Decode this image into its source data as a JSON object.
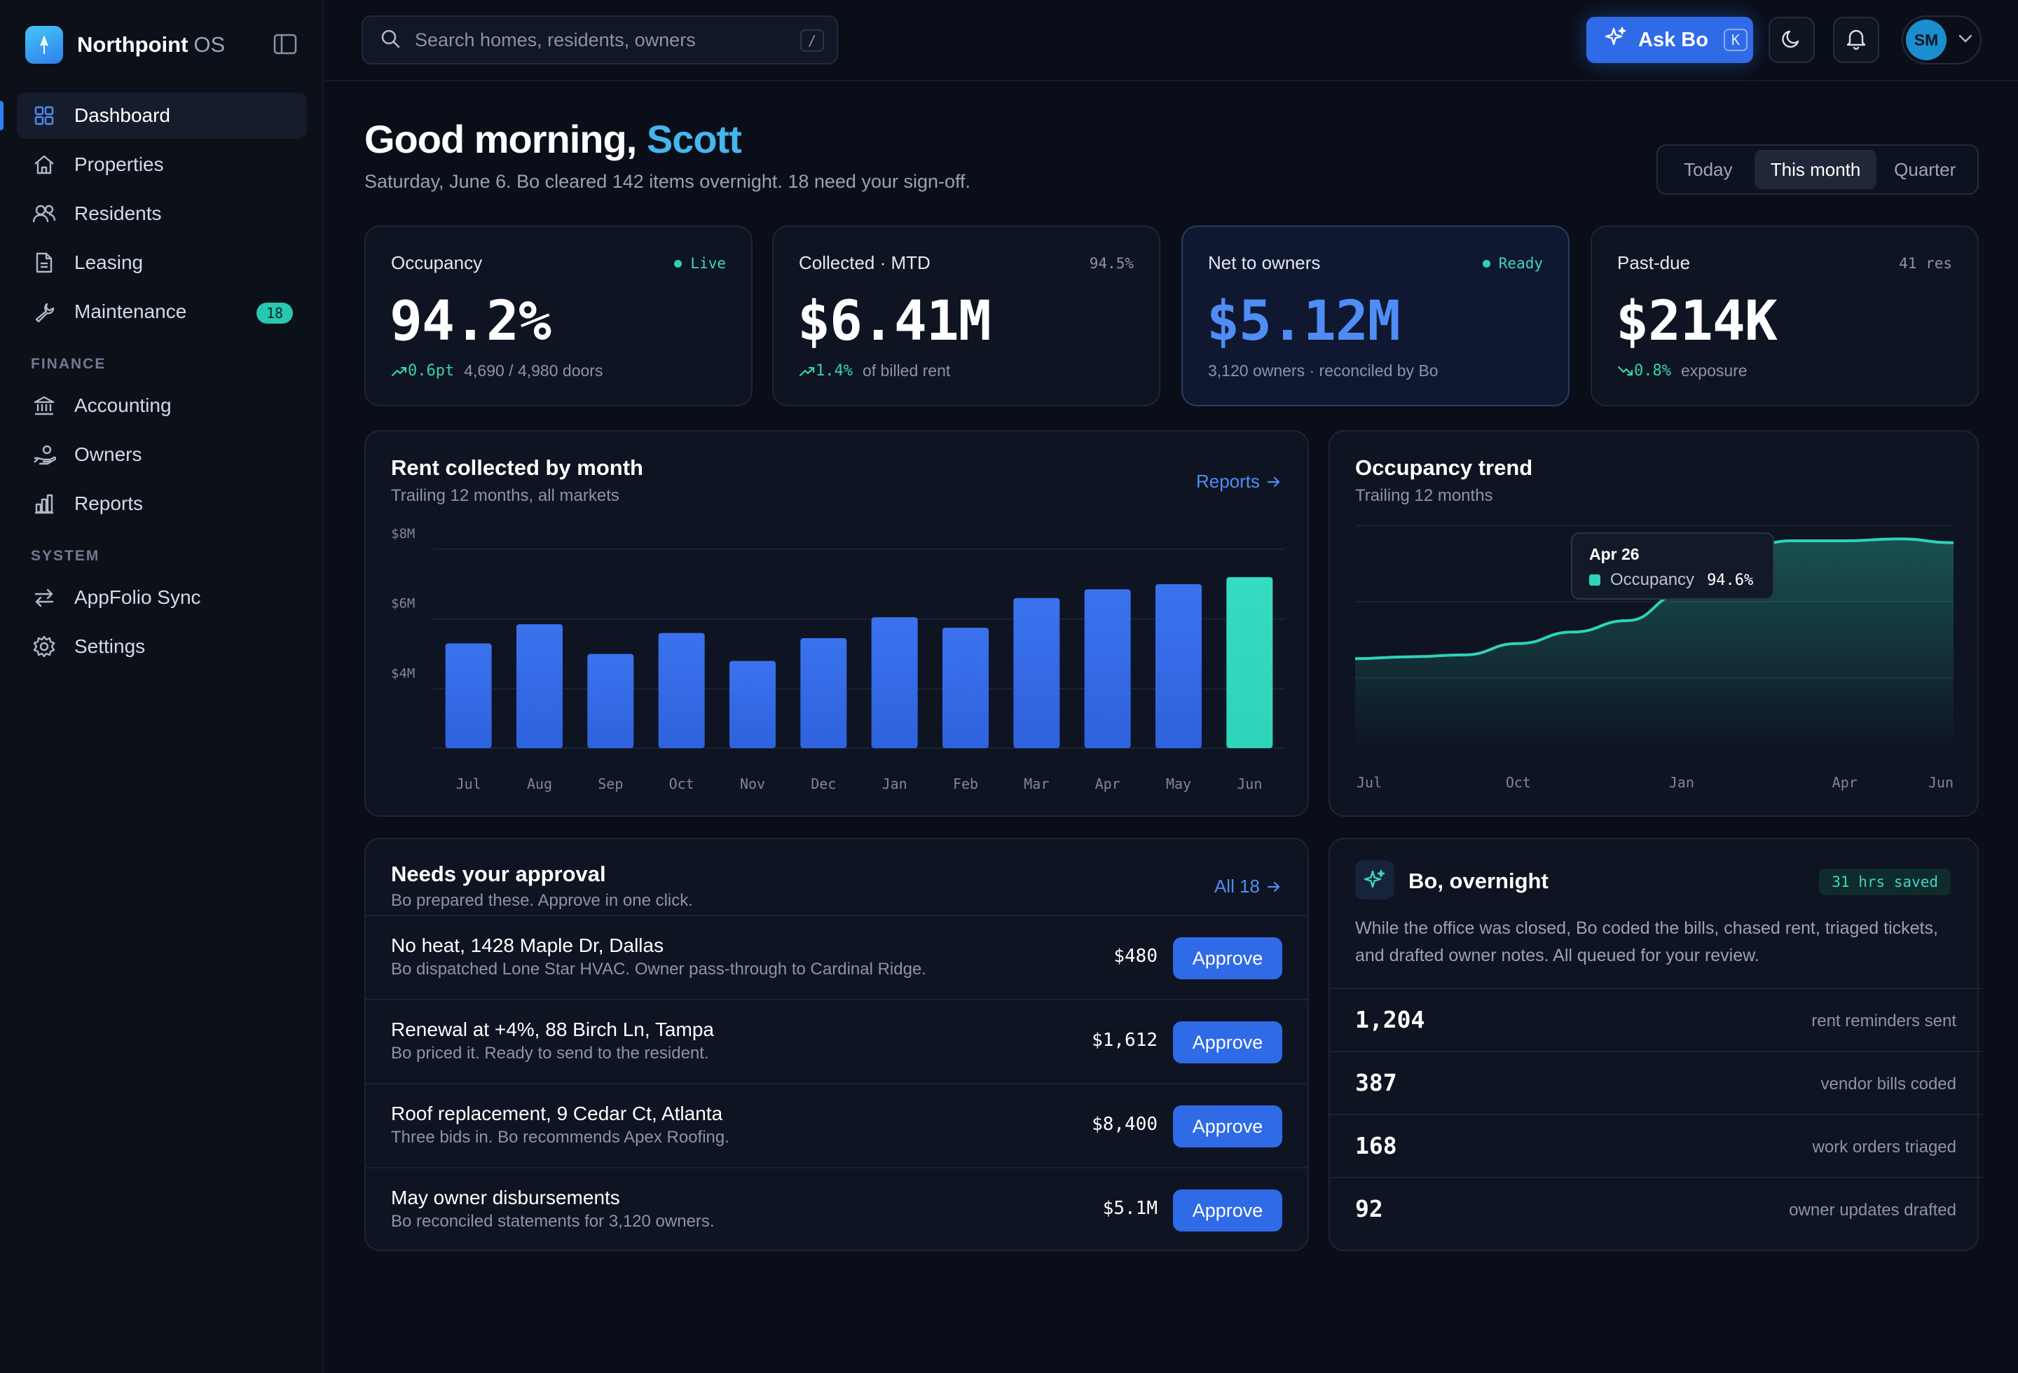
{
  "brand": {
    "name": "Northpoint",
    "suffix": "OS"
  },
  "nav": {
    "main": [
      {
        "label": "Dashboard",
        "icon": "dashboard-icon",
        "active": true
      },
      {
        "label": "Properties",
        "icon": "home-icon"
      },
      {
        "label": "Residents",
        "icon": "users-icon"
      },
      {
        "label": "Leasing",
        "icon": "document-icon"
      },
      {
        "label": "Maintenance",
        "icon": "wrench-icon",
        "badge": "18"
      }
    ],
    "finance_label": "FINANCE",
    "finance": [
      {
        "label": "Accounting",
        "icon": "bank-icon"
      },
      {
        "label": "Owners",
        "icon": "hand-coins-icon"
      },
      {
        "label": "Reports",
        "icon": "bar-chart-icon"
      }
    ],
    "system_label": "SYSTEM",
    "system": [
      {
        "label": "AppFolio Sync",
        "icon": "sync-arrows-icon"
      },
      {
        "label": "Settings",
        "icon": "gear-icon"
      }
    ]
  },
  "topbar": {
    "search_placeholder": "Search homes, residents, owners",
    "search_shortcut": "/",
    "ask_label": "Ask Bo",
    "ask_shortcut": "K",
    "avatar_initials": "SM"
  },
  "greeting": {
    "prefix": "Good morning,",
    "name": "Scott",
    "subline": "Saturday, June 6. Bo cleared 142 items overnight. 18 need your sign-off."
  },
  "range": {
    "options": [
      "Today",
      "This month",
      "Quarter"
    ],
    "selected": "This month"
  },
  "kpis": [
    {
      "title": "Occupancy",
      "tag": "Live",
      "value": "94.2%",
      "delta": "0.6pt",
      "foot": "4,690 / 4,980 doors"
    },
    {
      "title": "Collected · MTD",
      "tag": "94.5%",
      "value": "$6.41M",
      "delta": "1.4%",
      "foot": "of billed rent"
    },
    {
      "title": "Net to owners",
      "tag": "Ready",
      "value": "$5.12M",
      "foot": "3,120 owners · reconciled by Bo"
    },
    {
      "title": "Past-due",
      "tag": "41 res",
      "value": "$214K",
      "delta": "0.8%",
      "foot": "exposure"
    }
  ],
  "rent_chart": {
    "title": "Rent collected by month",
    "subtitle": "Trailing 12 months, all markets",
    "link": "Reports"
  },
  "occupancy_chart": {
    "title": "Occupancy trend",
    "subtitle": "Trailing 12 months",
    "tooltip": {
      "date": "Apr 26",
      "label": "Occupancy",
      "value": "94.6%"
    }
  },
  "chart_data": [
    {
      "type": "bar",
      "title": "Rent collected by month",
      "categories": [
        "Jul",
        "Aug",
        "Sep",
        "Oct",
        "Nov",
        "Dec",
        "Jan",
        "Feb",
        "Mar",
        "Apr",
        "May",
        "Jun"
      ],
      "values": [
        5.3,
        5.85,
        5.0,
        5.6,
        4.8,
        5.45,
        6.05,
        5.75,
        6.6,
        6.85,
        7.0,
        7.2
      ],
      "unit": "$M",
      "yticks": [
        "$8M",
        "$6M",
        "$4M"
      ],
      "ylim": [
        2.3,
        8.0
      ],
      "highlight_index": 11,
      "colors": {
        "bar": "#2f62dd",
        "highlight": "#2ed3ba"
      }
    },
    {
      "type": "area",
      "title": "Occupancy trend",
      "categories": [
        "Jul",
        "Aug",
        "Sep",
        "Oct",
        "Nov",
        "Dec",
        "Jan",
        "Feb",
        "Mar",
        "Apr",
        "May",
        "Jun"
      ],
      "xticks": [
        "Jul",
        "Oct",
        "Jan",
        "Apr",
        "Jun"
      ],
      "values": [
        91.5,
        91.55,
        91.6,
        91.9,
        92.2,
        92.5,
        93.2,
        94.3,
        94.6,
        94.6,
        94.65,
        94.55
      ],
      "ylim": [
        89,
        96
      ],
      "unit": "%",
      "colors": {
        "line": "#2ed3ba"
      }
    }
  ],
  "approvals": {
    "title": "Needs your approval",
    "subtitle": "Bo prepared these. Approve in one click.",
    "link": "All 18",
    "button_label": "Approve",
    "items": [
      {
        "title": "No heat, 1428 Maple Dr, Dallas",
        "desc": "Bo dispatched Lone Star HVAC. Owner pass-through to Cardinal Ridge.",
        "amount": "$480"
      },
      {
        "title": "Renewal at +4%, 88 Birch Ln, Tampa",
        "desc": "Bo priced it. Ready to send to the resident.",
        "amount": "$1,612"
      },
      {
        "title": "Roof replacement, 9 Cedar Ct, Atlanta",
        "desc": "Three bids in. Bo recommends Apex Roofing.",
        "amount": "$8,400"
      },
      {
        "title": "May owner disbursements",
        "desc": "Bo reconciled statements for 3,120 owners.",
        "amount": "$5.1M"
      }
    ]
  },
  "overnight": {
    "title": "Bo, overnight",
    "badge": "31 hrs saved",
    "text": "While the office was closed, Bo coded the bills, chased rent, triaged tickets, and drafted owner notes. All queued for your review.",
    "stats": [
      {
        "value": "1,204",
        "label": "rent reminders sent"
      },
      {
        "value": "387",
        "label": "vendor bills coded"
      },
      {
        "value": "168",
        "label": "work orders triaged"
      },
      {
        "value": "92",
        "label": "owner updates drafted"
      }
    ]
  }
}
